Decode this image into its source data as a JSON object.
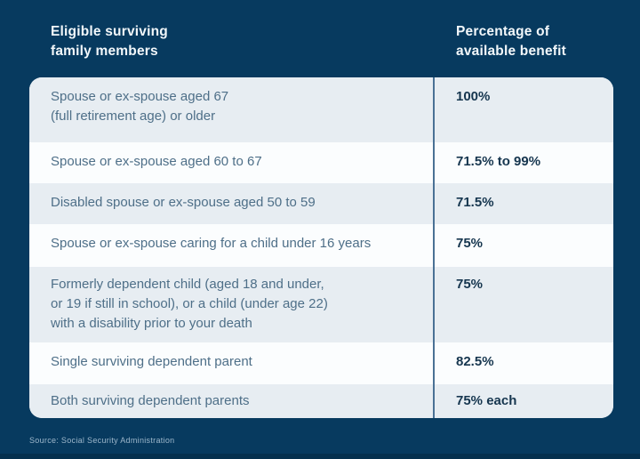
{
  "header": {
    "members": "Eligible surviving\nfamily members",
    "benefit": "Percentage of\navailable benefit"
  },
  "table": {
    "rows": [
      {
        "member": "Spouse or ex-spouse aged 67\n(full retirement age) or older",
        "benefit": "100%"
      },
      {
        "member": "Spouse or ex-spouse aged 60 to 67",
        "benefit": "71.5% to 99%"
      },
      {
        "member": "Disabled spouse or ex-spouse aged 50 to 59",
        "benefit": "71.5%"
      },
      {
        "member": "Spouse or ex-spouse caring for a child under 16 years",
        "benefit": "75%"
      },
      {
        "member": "Formerly dependent child (aged 18 and under,\nor 19 if still in school), or a child (under age 22)\nwith a disability prior to your death",
        "benefit": "75%"
      },
      {
        "member": "Single surviving dependent parent",
        "benefit": "82.5%"
      },
      {
        "member": "Both surviving dependent parents",
        "benefit": "75% each"
      }
    ]
  },
  "source": {
    "text": "Source: Social Security Administration"
  },
  "colors": {
    "background_navy": "#073a5f",
    "row_alt_gray": "#e7edf2",
    "row_white": "#fbfdfe",
    "divider_blue": "#4a7195",
    "member_text": "#4e6f88",
    "value_text": "#16364f",
    "header_text": "#f2f7fa",
    "source_text": "#9db7cb"
  },
  "chart_data": {
    "type": "table",
    "title": "",
    "columns": [
      "Eligible surviving family members",
      "Percentage of available benefit"
    ],
    "rows": [
      [
        "Spouse or ex-spouse aged 67 (full retirement age) or older",
        "100%"
      ],
      [
        "Spouse or ex-spouse aged 60 to 67",
        "71.5% to 99%"
      ],
      [
        "Disabled spouse or ex-spouse aged 50 to 59",
        "71.5%"
      ],
      [
        "Spouse or ex-spouse caring for a child under 16 years",
        "75%"
      ],
      [
        "Formerly dependent child (aged 18 and under, or 19 if still in school), or a child (under age 22) with a disability prior to your death",
        "75%"
      ],
      [
        "Single surviving dependent parent",
        "82.5%"
      ],
      [
        "Both surviving dependent parents",
        "75% each"
      ]
    ],
    "source": "Source: Social Security Administration",
    "layout_hints": {
      "alternating_row_shading": true,
      "column_divider": "vertical blue line",
      "value_column_bold": true
    }
  }
}
